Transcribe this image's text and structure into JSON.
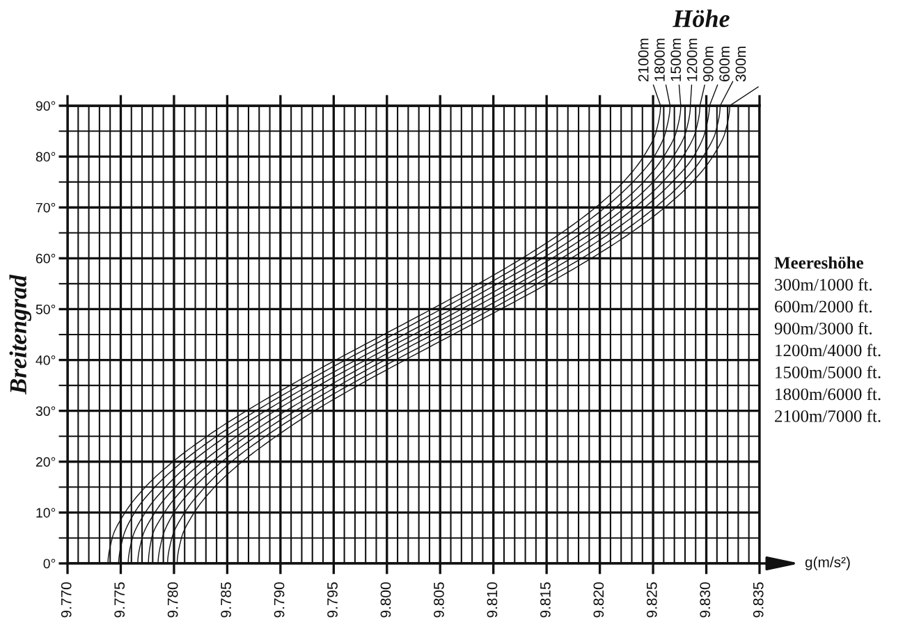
{
  "chart_data": {
    "type": "line",
    "ylabel": "Breitengrad",
    "xlabel": "g(m/s²)",
    "legend_title": "Höhe",
    "annotations": [
      "Meereshöhe",
      "300m/1000 ft.",
      "600m/2000 ft.",
      "900m/3000 ft.",
      "1200m/4000 ft.",
      "1500m/5000 ft.",
      "1800m/6000 ft.",
      "2100m/7000 ft."
    ],
    "xlim": [
      9.77,
      9.835
    ],
    "ylim": [
      0,
      90
    ],
    "grid": true,
    "xticks": [
      {
        "value": 9.77,
        "label": "9.770"
      },
      {
        "value": 9.771,
        "label": null
      },
      {
        "value": 9.772,
        "label": null
      },
      {
        "value": 9.773,
        "label": null
      },
      {
        "value": 9.774,
        "label": null
      },
      9.775,
      {
        "value": 9.776,
        "label": null
      },
      {
        "value": 9.777,
        "label": null
      },
      {
        "value": 9.778,
        "label": null
      },
      {
        "value": 9.779,
        "label": null
      },
      {
        "value": 9.78,
        "label": "9.780"
      },
      {
        "value": 9.781,
        "label": null
      },
      {
        "value": 9.782,
        "label": null
      },
      {
        "value": 9.783,
        "label": null
      },
      {
        "value": 9.784,
        "label": null
      },
      9.785,
      {
        "value": 9.786,
        "label": null
      },
      {
        "value": 9.787,
        "label": null
      },
      {
        "value": 9.788,
        "label": null
      },
      {
        "value": 9.789,
        "label": null
      },
      {
        "value": 9.79,
        "label": "9.790"
      },
      {
        "value": 9.791,
        "label": null
      },
      {
        "value": 9.792,
        "label": null
      },
      {
        "value": 9.793,
        "label": null
      },
      {
        "value": 9.794,
        "label": null
      },
      9.795,
      {
        "value": 9.796,
        "label": null
      },
      {
        "value": 9.797,
        "label": null
      },
      {
        "value": 9.798,
        "label": null
      },
      {
        "value": 9.799,
        "label": null
      },
      {
        "value": 9.8,
        "label": "9.800"
      },
      {
        "value": 9.801,
        "label": null
      },
      {
        "value": 9.802,
        "label": null
      },
      {
        "value": 9.803,
        "label": null
      },
      {
        "value": 9.804,
        "label": null
      },
      9.805,
      {
        "value": 9.806,
        "label": null
      },
      {
        "value": 9.807,
        "label": null
      },
      {
        "value": 9.808,
        "label": null
      },
      {
        "value": 9.809,
        "label": null
      },
      {
        "value": 9.81,
        "label": "9.810"
      },
      {
        "value": 9.811,
        "label": null
      },
      {
        "value": 9.812,
        "label": null
      },
      {
        "value": 9.813,
        "label": null
      },
      {
        "value": 9.814,
        "label": null
      },
      9.815,
      {
        "value": 9.816,
        "label": null
      },
      {
        "value": 9.817,
        "label": null
      },
      {
        "value": 9.818,
        "label": null
      },
      {
        "value": 9.819,
        "label": null
      },
      {
        "value": 9.82,
        "label": "9.820"
      },
      {
        "value": 9.821,
        "label": null
      },
      {
        "value": 9.822,
        "label": null
      },
      {
        "value": 9.823,
        "label": null
      },
      {
        "value": 9.824,
        "label": null
      },
      9.825,
      {
        "value": 9.826,
        "label": null
      },
      {
        "value": 9.827,
        "label": null
      },
      {
        "value": 9.828,
        "label": null
      },
      {
        "value": 9.829,
        "label": null
      },
      {
        "value": 9.83,
        "label": "9.830"
      },
      {
        "value": 9.831,
        "label": null
      },
      {
        "value": 9.832,
        "label": null
      },
      {
        "value": 9.833,
        "label": null
      },
      {
        "value": 9.834,
        "label": null
      },
      9.835
    ],
    "yticks": [
      {
        "value": 0,
        "label": "0°"
      },
      {
        "value": 5,
        "label": null
      },
      {
        "value": 10,
        "label": "10°"
      },
      {
        "value": 15,
        "label": null
      },
      {
        "value": 20,
        "label": "20°"
      },
      {
        "value": 25,
        "label": null
      },
      {
        "value": 30,
        "label": "30°"
      },
      {
        "value": 35,
        "label": null
      },
      {
        "value": 40,
        "label": "40°"
      },
      {
        "value": 45,
        "label": null
      },
      {
        "value": 50,
        "label": "50°"
      },
      {
        "value": 55,
        "label": null
      },
      {
        "value": 60,
        "label": "60°"
      },
      {
        "value": 65,
        "label": null
      },
      {
        "value": 70,
        "label": "70°"
      },
      {
        "value": 75,
        "label": null
      },
      {
        "value": 80,
        "label": "80°"
      },
      {
        "value": 85,
        "label": null
      },
      {
        "value": 90,
        "label": "90°"
      }
    ],
    "series": [
      {
        "name": "2100m",
        "color": "#111111",
        "x": [
          9.7738,
          9.7742,
          9.7754,
          9.7773,
          9.7799,
          9.7831,
          9.7868,
          9.7909,
          9.7952,
          9.7997,
          9.8042,
          9.8086,
          9.8127,
          9.8164,
          9.8196,
          9.8222,
          9.8241,
          9.8253,
          9.8257
        ],
        "values": [
          0,
          5,
          10,
          15,
          20,
          25,
          30,
          35,
          40,
          45,
          50,
          55,
          60,
          65,
          70,
          75,
          80,
          85,
          90
        ]
      },
      {
        "name": "1800m",
        "color": "#111111",
        "x": [
          9.7748,
          9.7752,
          9.7763,
          9.7782,
          9.7808,
          9.784,
          9.7877,
          9.7918,
          9.7961,
          9.8006,
          9.8051,
          9.8095,
          9.8136,
          9.8173,
          9.8205,
          9.8231,
          9.8251,
          9.8262,
          9.8266
        ],
        "values": [
          0,
          5,
          10,
          15,
          20,
          25,
          30,
          35,
          40,
          45,
          50,
          55,
          60,
          65,
          70,
          75,
          80,
          85,
          90
        ]
      },
      {
        "name": "1500m",
        "color": "#111111",
        "x": [
          9.7757,
          9.7761,
          9.7773,
          9.7792,
          9.7817,
          9.7849,
          9.7886,
          9.7927,
          9.7971,
          9.8016,
          9.8061,
          9.8104,
          9.8146,
          9.8183,
          9.8215,
          9.8241,
          9.826,
          9.8272,
          9.8276
        ],
        "values": [
          0,
          5,
          10,
          15,
          20,
          25,
          30,
          35,
          40,
          45,
          50,
          55,
          60,
          65,
          70,
          75,
          80,
          85,
          90
        ]
      },
      {
        "name": "1200m",
        "color": "#111111",
        "x": [
          9.7766,
          9.777,
          9.7782,
          9.7801,
          9.7827,
          9.7859,
          9.7895,
          9.7936,
          9.798,
          9.8025,
          9.807,
          9.8114,
          9.8155,
          9.8192,
          9.8224,
          9.825,
          9.8269,
          9.8281,
          9.8285
        ],
        "values": [
          0,
          5,
          10,
          15,
          20,
          25,
          30,
          35,
          40,
          45,
          50,
          55,
          60,
          65,
          70,
          75,
          80,
          85,
          90
        ]
      },
      {
        "name": "900m",
        "color": "#111111",
        "x": [
          9.7776,
          9.7779,
          9.7791,
          9.781,
          9.7836,
          9.7868,
          9.7905,
          9.7946,
          9.7989,
          9.8034,
          9.8079,
          9.8123,
          9.8164,
          9.8201,
          9.8233,
          9.8259,
          9.8278,
          9.829,
          9.8294
        ],
        "values": [
          0,
          5,
          10,
          15,
          20,
          25,
          30,
          35,
          40,
          45,
          50,
          55,
          60,
          65,
          70,
          75,
          80,
          85,
          90
        ]
      },
      {
        "name": "600m",
        "color": "#111111",
        "x": [
          9.7785,
          9.7789,
          9.78,
          9.7819,
          9.7845,
          9.7877,
          9.7914,
          9.7955,
          9.7998,
          9.8043,
          9.8089,
          9.8132,
          9.8173,
          9.821,
          9.8242,
          9.8268,
          9.8288,
          9.8299,
          9.8303
        ],
        "values": [
          0,
          5,
          10,
          15,
          20,
          25,
          30,
          35,
          40,
          45,
          50,
          55,
          60,
          65,
          70,
          75,
          80,
          85,
          90
        ]
      },
      {
        "name": "300m",
        "color": "#111111",
        "x": [
          9.7794,
          9.7798,
          9.781,
          9.7829,
          9.7854,
          9.7886,
          9.7923,
          9.7964,
          9.8008,
          9.8053,
          9.8098,
          9.8141,
          9.8183,
          9.822,
          9.8252,
          9.8278,
          9.8297,
          9.8309,
          9.8313
        ],
        "values": [
          0,
          5,
          10,
          15,
          20,
          25,
          30,
          35,
          40,
          45,
          50,
          55,
          60,
          65,
          70,
          75,
          80,
          85,
          90
        ]
      },
      {
        "color": "#111111",
        "x": [
          9.7803,
          9.7807,
          9.7819,
          9.7838,
          9.7864,
          9.7896,
          9.7932,
          9.7973,
          9.8017,
          9.8062,
          9.8107,
          9.8151,
          9.8192,
          9.8229,
          9.8261,
          9.8287,
          9.8306,
          9.8318,
          9.8322
        ],
        "values": [
          0,
          5,
          10,
          15,
          20,
          25,
          30,
          35,
          40,
          45,
          50,
          55,
          60,
          65,
          70,
          75,
          80,
          85,
          90
        ]
      }
    ]
  }
}
